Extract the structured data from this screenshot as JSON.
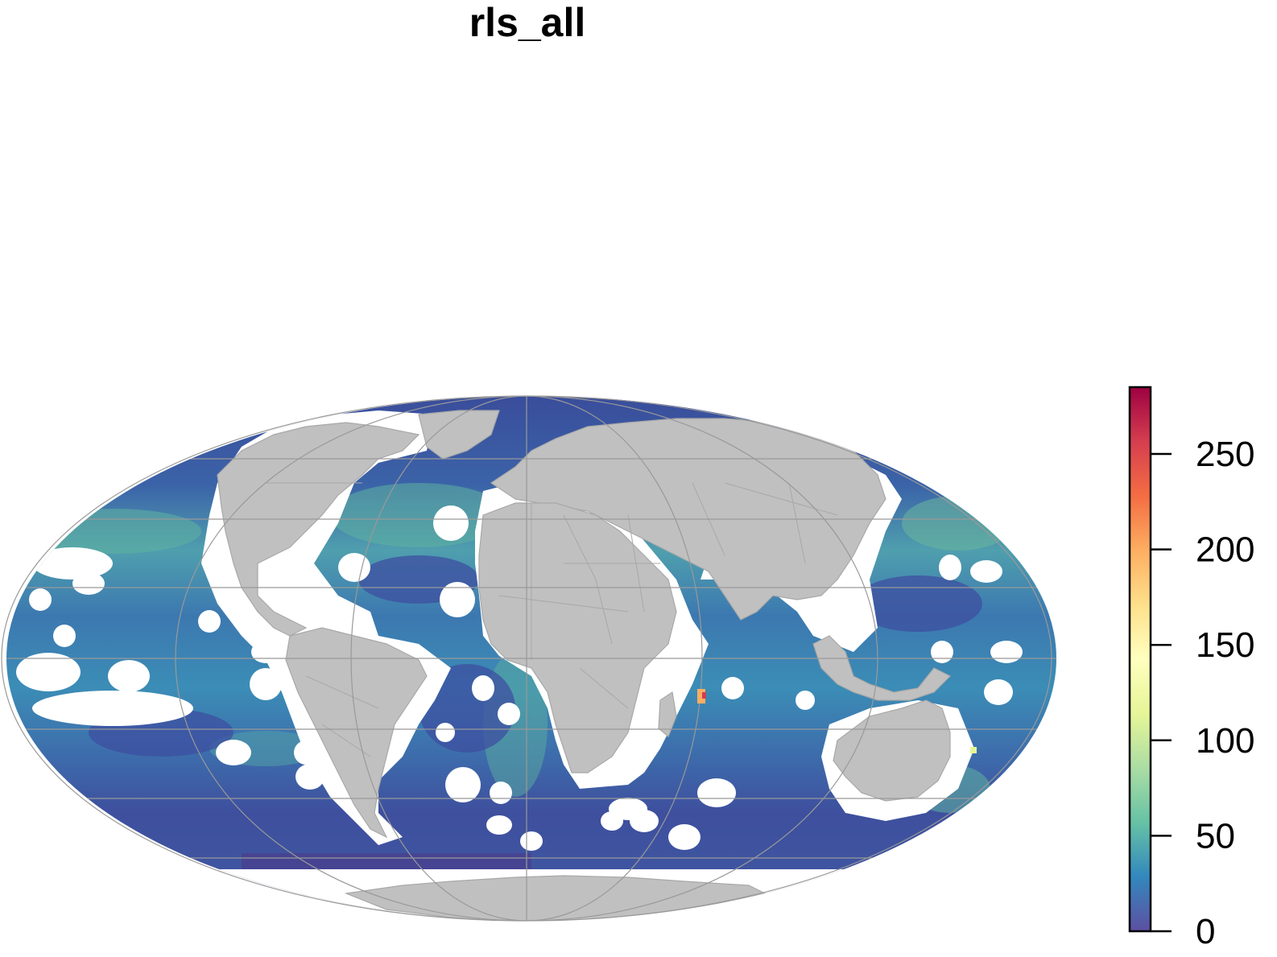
{
  "title": "rls_all",
  "legend": {
    "ticks": [
      "250",
      "200",
      "150",
      "100",
      "50",
      "0"
    ],
    "tick_values": [
      250,
      200,
      150,
      100,
      50,
      0
    ],
    "max_value": 285,
    "palette": [
      "#5e4fa2",
      "#3288bd",
      "#66c2a5",
      "#abdda4",
      "#e6f598",
      "#ffffbf",
      "#fee08b",
      "#fdae61",
      "#f46d43",
      "#d53e4f",
      "#9e0142"
    ]
  },
  "colors": {
    "land": "#c0c0c0",
    "land_border": "#a8a8a8",
    "graticule": "#999999",
    "ocean_high_lat": "#3f4d9c",
    "ocean_mid": "#3e7fb3",
    "ocean_green": "#5aa9a0",
    "ocean_south": "#463e8c",
    "nodata": "#ffffff"
  },
  "map": {
    "projection": "Mollweide",
    "variable": "rls_all"
  }
}
